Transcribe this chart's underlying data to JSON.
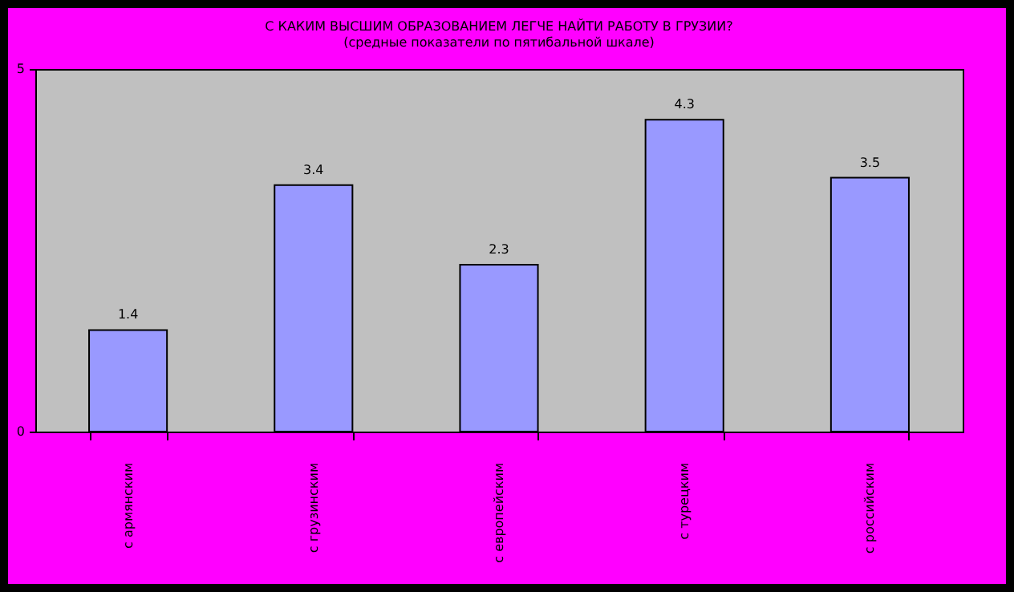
{
  "chart_data": {
    "type": "bar",
    "title": "С КАКИМ ВЫСШИМ ОБРАЗОВАНИЕМ ЛЕГЧЕ НАЙТИ РАБОТУ В ГРУЗИИ?",
    "subtitle": "(средные показатели по пятибальной шкале)",
    "categories": [
      "с армянским",
      "с грузинским",
      "с европейским",
      "с турецким",
      "с российским"
    ],
    "values": [
      1.4,
      3.4,
      2.3,
      4.3,
      3.5
    ],
    "color": "#9999ff",
    "ylim": [
      0,
      5
    ],
    "yticks": [
      0,
      5
    ],
    "data_labels": true
  }
}
